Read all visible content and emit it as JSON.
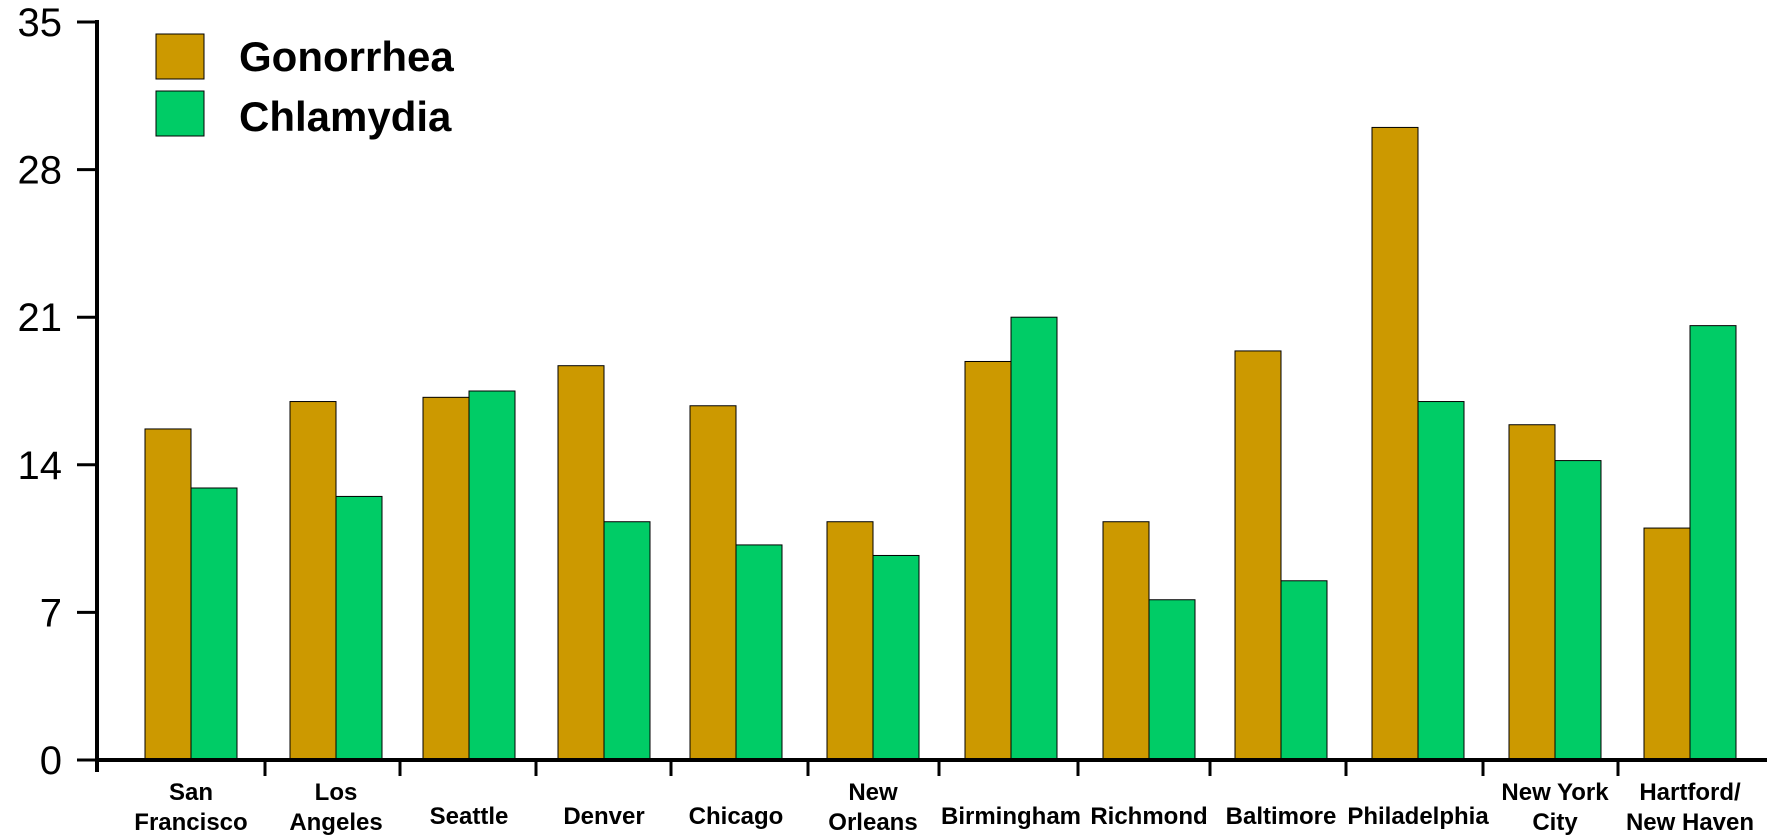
{
  "chart_data": {
    "type": "bar",
    "title": "",
    "xlabel": "",
    "ylabel": "",
    "ylim": [
      0,
      35
    ],
    "yticks": [
      "0",
      "7",
      "14",
      "21",
      "28",
      "35"
    ],
    "categories": [
      [
        "San",
        "Francisco"
      ],
      [
        "Los",
        "Angeles"
      ],
      [
        "Seattle"
      ],
      [
        "Denver"
      ],
      [
        "Chicago"
      ],
      [
        "New",
        "Orleans"
      ],
      [
        "Birmingham"
      ],
      [
        "Richmond"
      ],
      [
        "Baltimore"
      ],
      [
        "Philadelphia"
      ],
      [
        "New York",
        "City"
      ],
      [
        "Hartford/",
        "New Haven"
      ]
    ],
    "series": [
      {
        "name": "Gonorrhea",
        "color": "#CC9900",
        "values": [
          15.7,
          17.0,
          17.2,
          18.7,
          16.8,
          11.3,
          18.9,
          11.3,
          19.4,
          30.0,
          15.9,
          11.0
        ]
      },
      {
        "name": "Chlamydia",
        "color": "#00CC66",
        "values": [
          12.9,
          12.5,
          17.5,
          11.3,
          10.2,
          9.7,
          21.0,
          7.6,
          8.5,
          17.0,
          14.2,
          20.6
        ]
      }
    ],
    "legend_position": "top-left",
    "grid": false
  }
}
